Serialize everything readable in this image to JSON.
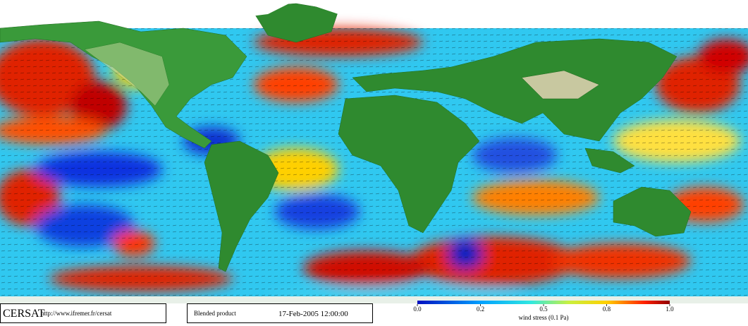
{
  "header": {
    "logo": "CERSAT",
    "url": "http://www.ifremer.fr/cersat"
  },
  "product": {
    "name": "Blended product",
    "date": "17-Feb-2005 12:00:00"
  },
  "colorbar": {
    "label": "wind stress (0.1 Pa)",
    "ticks": [
      {
        "value": 0,
        "label": "0.0"
      },
      0.2,
      0.5,
      0.8,
      {
        "value": 1,
        "label": "1.0"
      }
    ]
  }
}
